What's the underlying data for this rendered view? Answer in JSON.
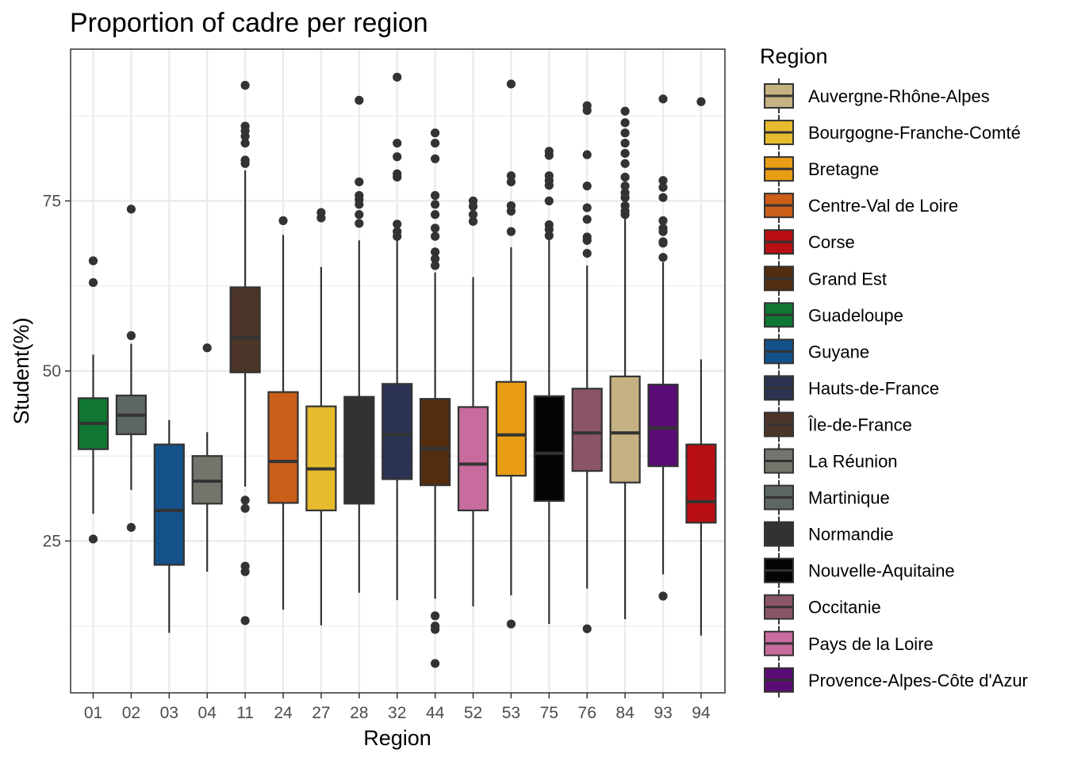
{
  "chart_data": {
    "type": "boxplot",
    "title": "Proportion of cadre per region",
    "xlabel": "Region",
    "ylabel": "Student(%)",
    "legend_title": "Region",
    "legend_position": "right",
    "grid": true,
    "ylim": [
      2,
      97
    ],
    "y_ticks": [
      25,
      50,
      75
    ],
    "y_minor_ticks": [
      12.5,
      37.5,
      62.5,
      87.5
    ],
    "categories": [
      "01",
      "02",
      "03",
      "04",
      "11",
      "24",
      "27",
      "28",
      "32",
      "44",
      "52",
      "53",
      "75",
      "76",
      "84",
      "93",
      "94"
    ],
    "boxes": [
      {
        "region": "01",
        "legend": "Guadeloupe",
        "whisker_low": 29,
        "q1": 38.5,
        "median": 42.3,
        "q3": 46,
        "whisker_high": 52.4,
        "outliers": [
          66.2,
          63,
          25.3
        ]
      },
      {
        "region": "02",
        "legend": "Martinique",
        "whisker_low": 32.5,
        "q1": 40.7,
        "median": 43.5,
        "q3": 46.4,
        "whisker_high": 54,
        "outliers": [
          73.8,
          55.2,
          27
        ]
      },
      {
        "region": "03",
        "legend": "Guyane",
        "whisker_low": 11.5,
        "q1": 21.5,
        "median": 29.5,
        "q3": 39.2,
        "whisker_high": 42.8,
        "outliers": []
      },
      {
        "region": "04",
        "legend": "La Réunion",
        "whisker_low": 20.5,
        "q1": 30.5,
        "median": 33.8,
        "q3": 37.5,
        "whisker_high": 41,
        "outliers": [
          53.4
        ]
      },
      {
        "region": "11",
        "legend": "Île-de-France",
        "whisker_low": 33,
        "q1": 49.8,
        "median": 54.9,
        "q3": 62.3,
        "whisker_high": 79.5,
        "outliers": [
          92,
          86,
          85.3,
          84.5,
          83.5,
          81,
          80.5,
          31,
          29.8,
          21.3,
          20.5,
          13.3
        ]
      },
      {
        "region": "24",
        "legend": "Centre-Val de Loire",
        "whisker_low": 14.9,
        "q1": 30.6,
        "median": 36.7,
        "q3": 46.9,
        "whisker_high": 70,
        "outliers": [
          72.1
        ]
      },
      {
        "region": "27",
        "legend": "Bourgogne-Franche-Comté",
        "whisker_low": 12.6,
        "q1": 29.5,
        "median": 35.6,
        "q3": 44.8,
        "whisker_high": 65.3,
        "outliers": [
          73.3,
          72.5
        ]
      },
      {
        "region": "28",
        "legend": "Normandie",
        "whisker_low": 17.4,
        "q1": 30.5,
        "median": 37.1,
        "q3": 46.2,
        "whisker_high": 69.2,
        "outliers": [
          89.8,
          77.8,
          75.8,
          75.2,
          74.5,
          73,
          71.7
        ]
      },
      {
        "region": "32",
        "legend": "Hauts-de-France",
        "whisker_low": 16.3,
        "q1": 34.1,
        "median": 40.6,
        "q3": 48.1,
        "whisker_high": 69.2,
        "outliers": [
          93.2,
          83.5,
          81.5,
          79,
          78.5,
          71.6,
          70.5,
          69.8
        ]
      },
      {
        "region": "44",
        "legend": "Grand Est",
        "whisker_low": 16.5,
        "q1": 33.2,
        "median": 38.6,
        "q3": 45.9,
        "whisker_high": 64.5,
        "outliers": [
          85,
          83.5,
          81.2,
          75.8,
          74.5,
          73,
          71,
          69.8,
          67.5,
          66.5,
          65.5,
          14,
          12.5,
          12,
          7
        ]
      },
      {
        "region": "52",
        "legend": "Pays de la Loire",
        "whisker_low": 15.4,
        "q1": 29.5,
        "median": 36.3,
        "q3": 44.7,
        "whisker_high": 63.8,
        "outliers": [
          75,
          74.2,
          73,
          72
        ]
      },
      {
        "region": "53",
        "legend": "Bretagne",
        "whisker_low": 17,
        "q1": 34.6,
        "median": 40.6,
        "q3": 48.4,
        "whisker_high": 68.2,
        "outliers": [
          92.2,
          78.7,
          77.8,
          74.3,
          73.5,
          70.5,
          12.8
        ]
      },
      {
        "region": "75",
        "legend": "Nouvelle-Aquitaine",
        "whisker_low": 12.8,
        "q1": 30.9,
        "median": 37.9,
        "q3": 46.3,
        "whisker_high": 69.5,
        "outliers": [
          82.3,
          81.7,
          78.7,
          78,
          77.3,
          75,
          71.5,
          70.8,
          69.9
        ]
      },
      {
        "region": "76",
        "legend": "Occitanie",
        "whisker_low": 18,
        "q1": 35.3,
        "median": 40.9,
        "q3": 47.4,
        "whisker_high": 65.5,
        "outliers": [
          89,
          88.3,
          81.8,
          77.2,
          74,
          72.3,
          69.7,
          69.2,
          67.3,
          12.1
        ]
      },
      {
        "region": "84",
        "legend": "Auvergne-Rhône-Alpes",
        "whisker_low": 13.5,
        "q1": 33.6,
        "median": 40.9,
        "q3": 49.2,
        "whisker_high": 72.5,
        "outliers": [
          88.2,
          86.5,
          85,
          83.5,
          82,
          80.5,
          78.5,
          77.2,
          76.2,
          75.5,
          74.3,
          73.5,
          73
        ]
      },
      {
        "region": "93",
        "legend": "Provence-Alpes-Côte d'Azur",
        "whisker_low": 20.1,
        "q1": 36,
        "median": 41.6,
        "q3": 48,
        "whisker_high": 66,
        "outliers": [
          90,
          78,
          77,
          75.5,
          72.1,
          71,
          70.5,
          69,
          68.8,
          66.7,
          16.9
        ]
      },
      {
        "region": "94",
        "legend": "Corse",
        "whisker_low": 11.1,
        "q1": 27.7,
        "median": 30.8,
        "q3": 39.2,
        "whisker_high": 51.7,
        "outliers": [
          89.6
        ]
      }
    ],
    "legend": [
      {
        "label": "Auvergne-Rhône-Alpes",
        "color": "#C6B183"
      },
      {
        "label": "Bourgogne-Franche-Comté",
        "color": "#E6BB2E"
      },
      {
        "label": "Bretagne",
        "color": "#E99D14"
      },
      {
        "label": "Centre-Val de Loire",
        "color": "#CB5E19"
      },
      {
        "label": "Corse",
        "color": "#B80F12"
      },
      {
        "label": "Grand Est",
        "color": "#522D10"
      },
      {
        "label": "Guadeloupe",
        "color": "#0F7633"
      },
      {
        "label": "Guyane",
        "color": "#145189"
      },
      {
        "label": "Hauts-de-France",
        "color": "#2C3352"
      },
      {
        "label": "Île-de-France",
        "color": "#4D3428"
      },
      {
        "label": "La Réunion",
        "color": "#72756B"
      },
      {
        "label": "Martinique",
        "color": "#5C6663"
      },
      {
        "label": "Normandie",
        "color": "#323232"
      },
      {
        "label": "Nouvelle-Aquitaine",
        "color": "#050505"
      },
      {
        "label": "Occitanie",
        "color": "#8A5566"
      },
      {
        "label": "Pays de la Loire",
        "color": "#C86B9D"
      },
      {
        "label": "Provence-Alpes-Côte d'Azur",
        "color": "#5A0C76"
      }
    ]
  }
}
